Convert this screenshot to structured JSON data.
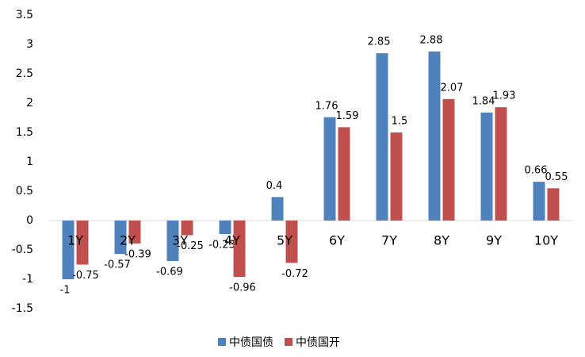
{
  "chart_data": {
    "type": "bar",
    "categories": [
      "1Y",
      "2Y",
      "3Y",
      "4Y",
      "5Y",
      "6Y",
      "7Y",
      "8Y",
      "9Y",
      "10Y"
    ],
    "series": [
      {
        "name": "中债国债",
        "color": "#4f81bd",
        "values": [
          -1,
          -0.57,
          -0.69,
          -0.23,
          0.4,
          1.76,
          2.85,
          2.88,
          1.84,
          0.66
        ]
      },
      {
        "name": "中债国开",
        "color": "#c0504d",
        "values": [
          -0.75,
          -0.39,
          -0.25,
          -0.96,
          -0.72,
          1.59,
          1.5,
          2.07,
          1.93,
          0.55
        ]
      }
    ],
    "ylim": [
      -1.5,
      3.5
    ],
    "yticks": [
      -1.5,
      -1,
      -0.5,
      0,
      0.5,
      1,
      1.5,
      2,
      2.5,
      3,
      3.5
    ],
    "grid": false,
    "legend": "bottom"
  }
}
